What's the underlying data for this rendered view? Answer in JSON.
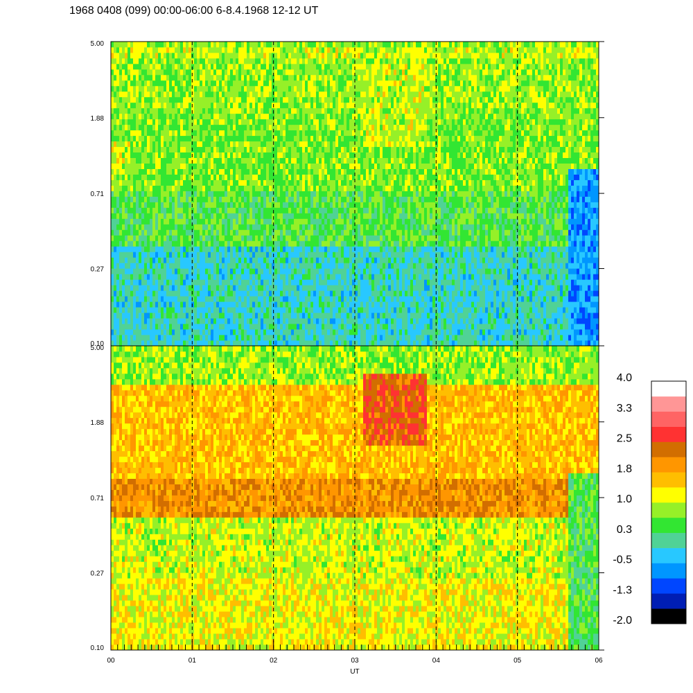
{
  "chart_data": {
    "type": "heatmap",
    "title": "1968 0408 (099) 00:00-06:00 6-8.4.1968  12-12 UT",
    "xlabel": "UT",
    "x_ticks": [
      "00",
      "01",
      "02",
      "03",
      "04",
      "05",
      "06"
    ],
    "x_range": [
      0,
      6
    ],
    "hour_markers": [
      1,
      2,
      3,
      4,
      5
    ],
    "panels": [
      {
        "id": "upper",
        "y_ticks": [
          "5.00",
          "1.88",
          "0.71",
          "0.27",
          "0.10"
        ],
        "y_range": [
          0.1,
          5.0
        ],
        "y_scale": "log",
        "bands": [
          {
            "y": [
              2.2,
              5.0
            ],
            "level": 0.8
          },
          {
            "y": [
              0.75,
              2.2
            ],
            "level": 0.7
          },
          {
            "y": [
              0.35,
              0.75
            ],
            "level": 0.45
          },
          {
            "y": [
              0.1,
              0.35
            ],
            "level": -0.1
          }
        ],
        "features": [
          {
            "type": "bright_line",
            "y": 4.4,
            "level": 1.0
          },
          {
            "type": "patch",
            "t": [
              3.1,
              3.9
            ],
            "y": [
              1.3,
              3.8
            ],
            "level": 1.0
          },
          {
            "type": "patch",
            "t": [
              0.0,
              0.25
            ],
            "y": [
              0.9,
              1.4
            ],
            "level": 1.0
          },
          {
            "type": "dropout",
            "t": [
              5.62,
              6.0
            ],
            "y": [
              0.1,
              1.0
            ],
            "level": -0.6
          }
        ]
      },
      {
        "id": "lower",
        "y_ticks": [
          "5.00",
          "1.88",
          "0.71",
          "0.27",
          "0.10"
        ],
        "y_range": [
          0.1,
          5.0
        ],
        "y_scale": "log",
        "bands": [
          {
            "y": [
              3.0,
              5.0
            ],
            "level": 0.8
          },
          {
            "y": [
              0.9,
              3.0
            ],
            "level": 1.6
          },
          {
            "y": [
              0.55,
              0.9
            ],
            "level": 2.0
          },
          {
            "y": [
              0.25,
              0.55
            ],
            "level": 1.0
          },
          {
            "y": [
              0.1,
              0.25
            ],
            "level": 1.2
          }
        ],
        "features": [
          {
            "type": "patch",
            "t": [
              3.1,
              3.9
            ],
            "y": [
              1.4,
              3.6
            ],
            "level": 2.4
          },
          {
            "type": "dropout",
            "t": [
              5.62,
              6.0
            ],
            "y": [
              0.1,
              1.0
            ],
            "level": 0.4
          }
        ]
      }
    ],
    "colorbar": {
      "tick_labels": [
        "4.0",
        "3.3",
        "2.5",
        "1.8",
        "1.0",
        "0.3",
        "-0.5",
        "-1.3",
        "-2.0"
      ],
      "range": [
        -2.0,
        4.0
      ],
      "colors": [
        "#000000",
        "#001eb4",
        "#0046ff",
        "#0096ff",
        "#28c8ff",
        "#50d296",
        "#32e632",
        "#96f028",
        "#ffff00",
        "#ffbe00",
        "#ff9600",
        "#d26e00",
        "#ff3232",
        "#ff6464",
        "#ff9696",
        "#ffffff"
      ]
    }
  }
}
